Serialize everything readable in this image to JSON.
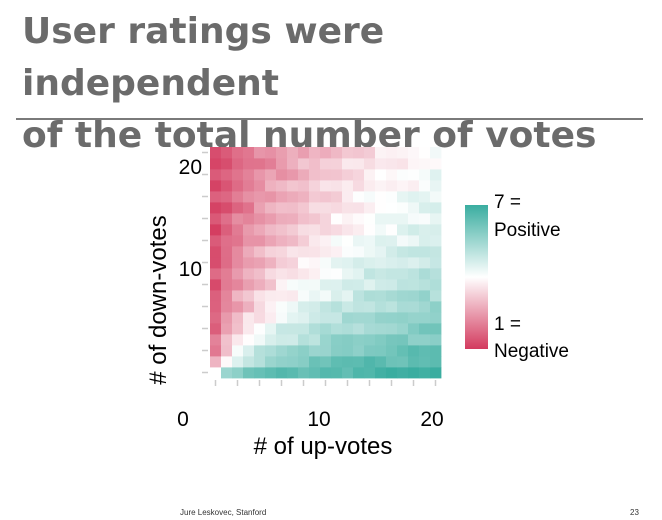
{
  "slide": {
    "title_line1": "User ratings were independent",
    "title_line2": "of the total number of votes",
    "footer_left": "Jure Leskovec, Stanford",
    "page_number": "23"
  },
  "chart_data": {
    "type": "heatmap",
    "title": "",
    "xlabel": "# of up-votes",
    "ylabel": "# of down-votes",
    "x_range": [
      0,
      20
    ],
    "y_range": [
      0,
      20
    ],
    "x_ticks": [
      0,
      10,
      20
    ],
    "y_ticks": [
      10,
      20
    ],
    "x_tick_labels": [
      "0",
      "10",
      "20"
    ],
    "y_tick_labels": [
      "10",
      "20"
    ],
    "grid": false,
    "colorscale": {
      "min": 1,
      "max": 7,
      "low_color": "#d33a5e",
      "mid_color": "#ffffff",
      "high_color": "#3aada0",
      "max_label_line1": "7 =",
      "max_label_line2": "Positive",
      "min_label_line1": "1 =",
      "min_label_line2": "Negative"
    },
    "cell_value_model": "rating(up, down) = clamp(4 + 3 * (up - down) / (up + down + 1.5), 1, 7)",
    "legend_position": "right"
  },
  "colors": {
    "title": "#6b6b6b",
    "rule": "#7a7a7a",
    "axis_text": "#000000",
    "tick": "#cccccc"
  }
}
